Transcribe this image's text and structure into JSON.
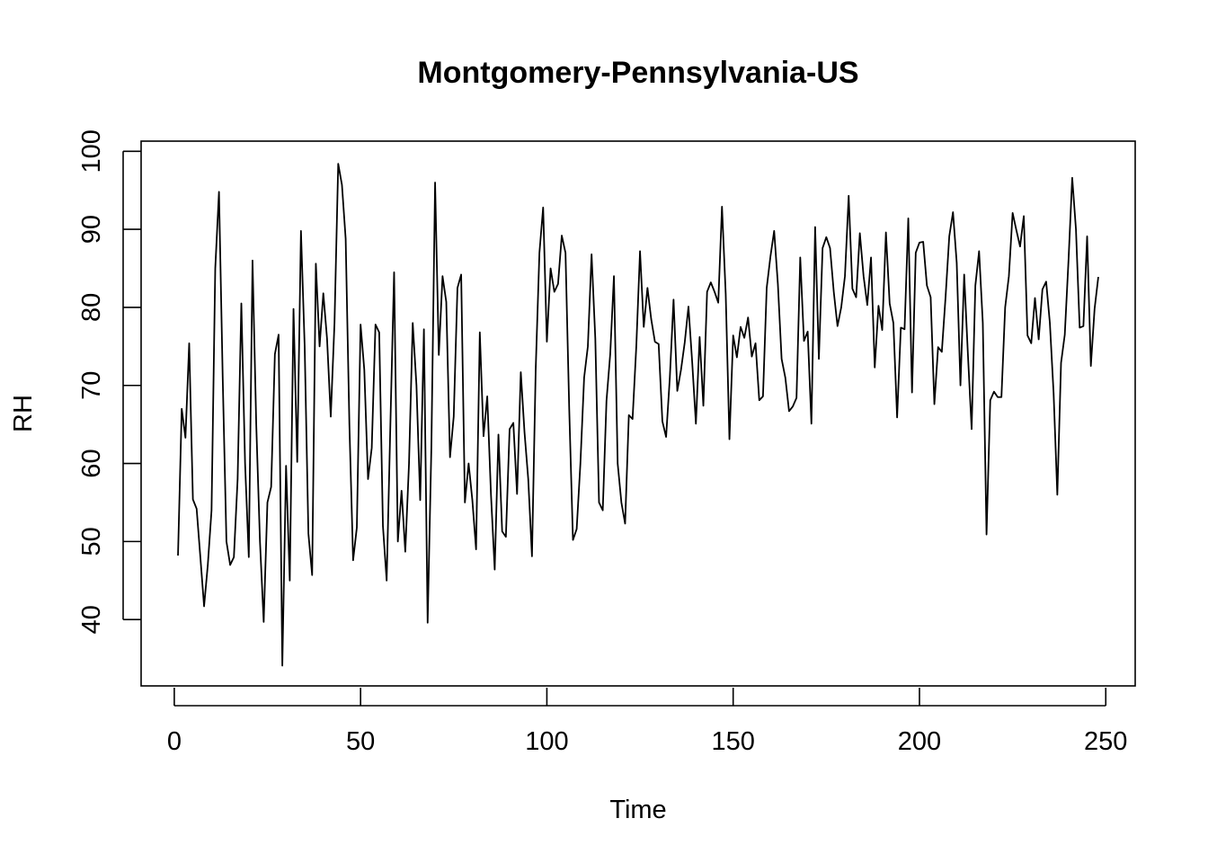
{
  "chart_data": {
    "type": "line",
    "title": "Montgomery-Pennsylvania-US",
    "xlabel": "Time",
    "ylabel": "RH",
    "xlim": [
      -8.9,
      257.9
    ],
    "ylim": [
      31.5,
      101.3
    ],
    "xticks": [
      0,
      50,
      100,
      150,
      200,
      250
    ],
    "yticks": [
      40,
      50,
      60,
      70,
      80,
      90,
      100
    ],
    "grid": false,
    "series": [
      {
        "x_start": 1,
        "values": [
          48.2,
          67.0,
          63.3,
          75.4,
          55.4,
          54.2,
          48.0,
          41.7,
          47.0,
          54.0,
          85.0,
          94.8,
          71.0,
          50.0,
          47.0,
          48.0,
          58.0,
          80.5,
          60.0,
          48.0,
          86.0,
          65.0,
          50.0,
          39.7,
          55.0,
          57.0,
          74.0,
          76.5,
          34.1,
          59.7,
          45.0,
          79.8,
          60.2,
          89.8,
          75.0,
          51.0,
          45.7,
          85.6,
          75.0,
          81.8,
          76.0,
          66.0,
          78.0,
          98.4,
          95.7,
          88.8,
          65.0,
          47.6,
          51.8,
          77.8,
          72.0,
          58.0,
          62.0,
          77.8,
          76.8,
          52.0,
          45.0,
          65.0,
          84.5,
          50.0,
          56.5,
          48.7,
          60.0,
          78.0,
          70.0,
          55.3,
          77.2,
          39.6,
          62.0,
          96.0,
          73.9,
          84.0,
          80.7,
          60.8,
          66.0,
          82.5,
          84.2,
          55.0,
          60.0,
          55.3,
          49.0,
          76.8,
          63.5,
          68.6,
          56.0,
          46.4,
          63.7,
          51.3,
          50.6,
          64.4,
          65.2,
          56.1,
          71.7,
          64.0,
          58.0,
          48.1,
          72.0,
          87.0,
          92.8,
          75.6,
          85.0,
          82.0,
          83.0,
          89.2,
          87.0,
          67.0,
          50.2,
          51.6,
          60.0,
          71.0,
          75.0,
          86.8,
          76.0,
          55.0,
          54.0,
          68.0,
          74.0,
          84.0,
          60.0,
          55.0,
          52.3,
          66.2,
          65.7,
          75.0,
          87.2,
          77.5,
          82.5,
          78.5,
          75.6,
          75.3,
          65.4,
          63.4,
          71.0,
          81.0,
          69.3,
          72.0,
          75.5,
          80.1,
          73.0,
          65.1,
          76.2,
          67.4,
          82.0,
          83.2,
          82.0,
          80.6,
          92.9,
          81.7,
          63.1,
          76.4,
          73.6,
          77.5,
          76.1,
          78.7,
          73.7,
          75.4,
          68.1,
          68.6,
          82.5,
          86.5,
          89.8,
          83.0,
          73.4,
          71.0,
          66.7,
          67.3,
          68.4,
          86.4,
          75.7,
          76.9,
          65.1,
          90.3,
          73.4,
          87.6,
          89.0,
          87.6,
          82.0,
          77.6,
          80.0,
          84.0,
          94.3,
          82.4,
          81.3,
          89.5,
          84.0,
          80.3,
          86.4,
          72.3,
          80.2,
          77.1,
          89.6,
          80.5,
          78.0,
          65.9,
          77.4,
          77.2,
          91.4,
          69.1,
          87.0,
          88.3,
          88.4,
          82.8,
          81.3,
          67.6,
          74.9,
          74.3,
          81.3,
          89.1,
          92.2,
          85.7,
          70.0,
          84.2,
          74.0,
          64.4,
          82.8,
          87.2,
          78.0,
          50.9,
          68.1,
          69.2,
          68.5,
          68.5,
          80.0,
          84.0,
          92.1,
          89.9,
          87.8,
          91.7,
          76.4,
          75.4,
          81.2,
          75.9,
          82.3,
          83.3,
          78.0,
          69.0,
          56.0,
          72.9,
          76.5,
          86.0,
          96.6,
          90.0,
          77.4,
          77.6,
          89.1,
          72.5,
          79.8,
          83.9
        ],
        "color": "#000000"
      }
    ]
  }
}
